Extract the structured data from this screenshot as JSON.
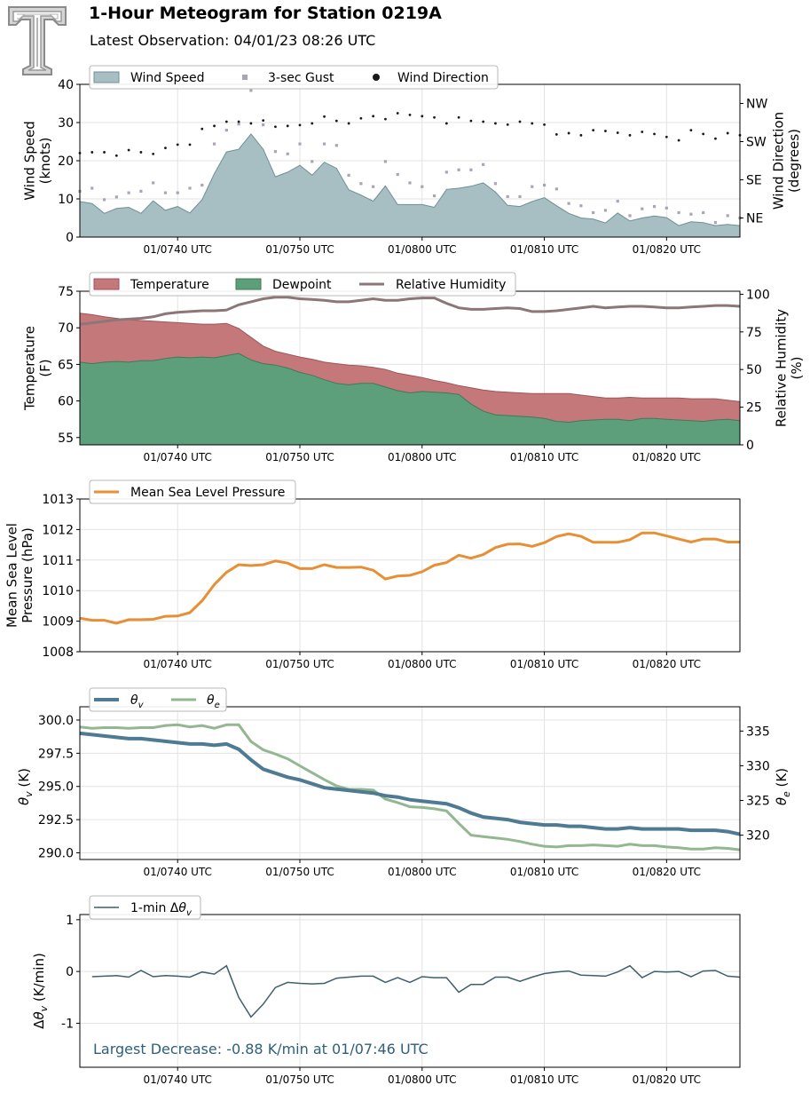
{
  "header": {
    "title": "1-Hour Meteogram for Station 0219A",
    "subtitle": "Latest Observation: 04/01/23 08:26 UTC",
    "logo_icon": "texas-tech-double-t-logo"
  },
  "colors": {
    "wind_fill": "#a7bec3",
    "wind_edge": "#6f8f96",
    "gust": "#a9a4b8",
    "direction": "#1a1a1a",
    "temperature": "#c4787a",
    "dewpoint": "#5e9f7b",
    "rh": "#8c7677",
    "mslp": "#e68f34",
    "theta_v": "#4e7a94",
    "theta_e": "#93b790",
    "dtheta": "#3e5f6c",
    "annotation": "#2f5f7a"
  },
  "x_axis": {
    "ticks": [
      40,
      50,
      60,
      70,
      80
    ],
    "tick_labels": [
      "01/0740 UTC",
      "01/0750 UTC",
      "01/0800 UTC",
      "01/0810 UTC",
      "01/0820 UTC"
    ],
    "xlim": [
      32,
      86
    ]
  },
  "chart_data": [
    {
      "id": "wind",
      "type": "area",
      "ylabel": "Wind Speed\n(knots)",
      "ylim": [
        0,
        40
      ],
      "yticks": [
        0,
        10,
        20,
        30,
        40
      ],
      "ylabel_right": "Wind Direction\n(degrees)",
      "ylim_right": [
        0,
        360
      ],
      "yticks_right": [
        45,
        135,
        225,
        315
      ],
      "ytick_labels_right": [
        "NE",
        "SE",
        "SW",
        "NW"
      ],
      "legend": [
        "Wind Speed",
        "3-sec Gust",
        "Wind Direction"
      ],
      "legend_position": "top-left",
      "grid": true,
      "speed_x": [
        32,
        33,
        34,
        35,
        36,
        37,
        38,
        39,
        40,
        41,
        42,
        43,
        44,
        45,
        46,
        47,
        48,
        49,
        50,
        51,
        52,
        53,
        54,
        55,
        56,
        57,
        58,
        59,
        60,
        61,
        62,
        63,
        64,
        65,
        66,
        67,
        68,
        69,
        70,
        71,
        72,
        73,
        74,
        75,
        76,
        77,
        78,
        79,
        80,
        81,
        82,
        83,
        84,
        85,
        86
      ],
      "speed": [
        9.3,
        8.8,
        6.2,
        7.5,
        7.8,
        6.2,
        9.5,
        7,
        8,
        6.3,
        9.8,
        16.6,
        22.3,
        23,
        27,
        23,
        15.8,
        17,
        18.8,
        16.2,
        19.6,
        18,
        12.4,
        11,
        9.4,
        13.4,
        8.5,
        8.5,
        8.5,
        7.8,
        12.5,
        12.8,
        13.3,
        14.2,
        11.8,
        8.3,
        8,
        9.3,
        10.3,
        8.2,
        6.2,
        5,
        4.7,
        3.7,
        6.3,
        4.2,
        5,
        5.5,
        5.1,
        3,
        4,
        3.8,
        3,
        3.3,
        3
      ],
      "gust_x": [
        32,
        33,
        34,
        35,
        36,
        37,
        38,
        39,
        40,
        41,
        42,
        43,
        44,
        45,
        46,
        47,
        48,
        49,
        50,
        51,
        52,
        53,
        54,
        55,
        56,
        57,
        58,
        59,
        60,
        61,
        62,
        63,
        64,
        65,
        66,
        67,
        68,
        69,
        70,
        71,
        72,
        73,
        74,
        75,
        76,
        77,
        78,
        79,
        80,
        81,
        82,
        83,
        84,
        85,
        86
      ],
      "gust": [
        12,
        12.8,
        9.8,
        10.5,
        11.6,
        12,
        14.2,
        11.6,
        11.6,
        12.8,
        13.6,
        24.4,
        28,
        29.6,
        38.4,
        29.4,
        22.4,
        21.8,
        24.4,
        19.8,
        24.4,
        24,
        16.2,
        14,
        13.2,
        19.8,
        16.4,
        14.2,
        13.2,
        10.8,
        17,
        17.6,
        17.6,
        19,
        14,
        10.6,
        10.6,
        13.2,
        13.6,
        12.6,
        8.8,
        8.2,
        6.4,
        7,
        9.4,
        5.6,
        7.4,
        8,
        7.6,
        6.4,
        6,
        6.4,
        3.8,
        5.6,
        5
      ],
      "direction_x": [
        32,
        33,
        34,
        35,
        36,
        37,
        38,
        39,
        40,
        41,
        42,
        43,
        44,
        45,
        46,
        47,
        48,
        49,
        50,
        51,
        52,
        53,
        54,
        55,
        56,
        57,
        58,
        59,
        60,
        61,
        62,
        63,
        64,
        65,
        66,
        67,
        68,
        69,
        70,
        71,
        72,
        73,
        74,
        75,
        76,
        77,
        78,
        79,
        80,
        81,
        82,
        83,
        84,
        85,
        86
      ],
      "direction": [
        198,
        200,
        200,
        192,
        205,
        200,
        196,
        210,
        218,
        218,
        255,
        262,
        272,
        272,
        268,
        275,
        260,
        262,
        264,
        268,
        284,
        274,
        268,
        280,
        285,
        278,
        292,
        288,
        285,
        282,
        268,
        282,
        274,
        272,
        268,
        265,
        272,
        268,
        265,
        242,
        245,
        240,
        252,
        250,
        246,
        240,
        248,
        243,
        236,
        228,
        252,
        243,
        232,
        245,
        240
      ]
    },
    {
      "id": "thermo",
      "type": "area",
      "ylabel": "Temperature\n(F)",
      "ylim": [
        54,
        75
      ],
      "yticks": [
        55,
        60,
        65,
        70,
        75
      ],
      "ylabel_right": "Relative Humidity\n(%)",
      "ylim_right": [
        0,
        102
      ],
      "yticks_right": [
        0,
        25,
        50,
        75,
        100
      ],
      "legend": [
        "Temperature",
        "Dewpoint",
        "Relative Humidity"
      ],
      "legend_position": "top-left",
      "grid": true,
      "x": [
        32,
        33,
        34,
        35,
        36,
        37,
        38,
        39,
        40,
        41,
        42,
        43,
        44,
        45,
        46,
        47,
        48,
        49,
        50,
        51,
        52,
        53,
        54,
        55,
        56,
        57,
        58,
        59,
        60,
        61,
        62,
        63,
        64,
        65,
        66,
        67,
        68,
        69,
        70,
        71,
        72,
        73,
        74,
        75,
        76,
        77,
        78,
        79,
        80,
        81,
        82,
        83,
        84,
        85,
        86
      ],
      "temperature": [
        72,
        71.8,
        71.5,
        71.3,
        71.1,
        71,
        70.9,
        70.8,
        70.7,
        70.6,
        70.5,
        70.5,
        70.6,
        69.9,
        68.7,
        67.5,
        66.8,
        66.4,
        66,
        65.7,
        65.3,
        65.1,
        64.9,
        64.8,
        64.6,
        64.3,
        63.8,
        63.5,
        63.2,
        62.8,
        62.5,
        62.1,
        61.8,
        61.5,
        61.3,
        61.2,
        61.1,
        61,
        61,
        61,
        61,
        60.8,
        60.6,
        60.4,
        60.4,
        60.5,
        60.4,
        60.4,
        60.4,
        60.4,
        60.3,
        60.3,
        60.3,
        60.1,
        59.9
      ],
      "dewpoint": [
        65.3,
        65.1,
        65.3,
        65.4,
        65.3,
        65.5,
        65.5,
        65.8,
        66,
        65.9,
        66,
        65.9,
        66.2,
        66.5,
        65.6,
        65.1,
        64.9,
        64.5,
        63.9,
        63.5,
        62.9,
        62.4,
        62.2,
        62.4,
        62.4,
        61.9,
        61.4,
        61.1,
        61.3,
        61.2,
        61.1,
        60.9,
        59.6,
        58.6,
        58.1,
        58,
        57.9,
        57.8,
        57.6,
        57.2,
        57.1,
        57.3,
        57.4,
        57.5,
        57.5,
        57.3,
        57.6,
        57.6,
        57.5,
        57.4,
        57.3,
        57.2,
        57.4,
        57.5,
        57.3
      ],
      "relative_humidity": [
        80,
        81,
        82,
        83,
        83.5,
        84,
        85,
        87,
        88,
        88.5,
        89,
        89,
        89.5,
        93,
        95,
        97,
        98,
        98,
        97,
        96.5,
        96,
        95,
        95,
        96,
        97,
        96,
        96,
        97,
        97.5,
        97.5,
        94,
        91,
        90,
        90,
        90.5,
        91,
        90.5,
        88.5,
        88.5,
        89,
        90,
        91,
        92,
        91,
        91.5,
        92,
        92,
        91.5,
        91,
        91,
        91.5,
        92,
        92.5,
        92.5,
        92
      ]
    },
    {
      "id": "mslp",
      "type": "line",
      "ylabel": "Mean Sea Level\nPressure (hPa)",
      "ylim": [
        1008,
        1013
      ],
      "yticks": [
        1008,
        1009,
        1010,
        1011,
        1012,
        1013
      ],
      "legend": [
        "Mean Sea Level Pressure"
      ],
      "legend_position": "top-left",
      "grid": true,
      "x": [
        32,
        33,
        34,
        35,
        36,
        37,
        38,
        39,
        40,
        41,
        42,
        43,
        44,
        45,
        46,
        47,
        48,
        49,
        50,
        51,
        52,
        53,
        54,
        55,
        56,
        57,
        58,
        59,
        60,
        61,
        62,
        63,
        64,
        65,
        66,
        67,
        68,
        69,
        70,
        71,
        72,
        73,
        74,
        75,
        76,
        77,
        78,
        79,
        80,
        81,
        82,
        83,
        84,
        85,
        86
      ],
      "pressure": [
        1009.1,
        1009.03,
        1009.03,
        1008.93,
        1009.05,
        1009.05,
        1009.06,
        1009.16,
        1009.17,
        1009.28,
        1009.67,
        1010.2,
        1010.6,
        1010.85,
        1010.82,
        1010.85,
        1010.97,
        1010.9,
        1010.72,
        1010.72,
        1010.85,
        1010.76,
        1010.76,
        1010.77,
        1010.67,
        1010.38,
        1010.48,
        1010.5,
        1010.62,
        1010.83,
        1010.92,
        1011.16,
        1011.06,
        1011.18,
        1011.41,
        1011.52,
        1011.53,
        1011.45,
        1011.57,
        1011.77,
        1011.86,
        1011.78,
        1011.58,
        1011.58,
        1011.58,
        1011.67,
        1011.89,
        1011.89,
        1011.79,
        1011.69,
        1011.59,
        1011.69,
        1011.69,
        1011.59,
        1011.59
      ]
    },
    {
      "id": "theta",
      "type": "line",
      "ylabel": "θv (K)",
      "ylim": [
        289.5,
        301
      ],
      "yticks": [
        290.0,
        292.5,
        295.0,
        297.5,
        300.0
      ],
      "ylabel_right": "θe (K)",
      "ylim_right": [
        316.5,
        338.5
      ],
      "yticks_right": [
        320,
        325,
        330,
        335
      ],
      "legend": [
        "θv",
        "θe"
      ],
      "legend_position": "top-left",
      "grid": true,
      "x": [
        32,
        33,
        34,
        35,
        36,
        37,
        38,
        39,
        40,
        41,
        42,
        43,
        44,
        45,
        46,
        47,
        48,
        49,
        50,
        51,
        52,
        53,
        54,
        55,
        56,
        57,
        58,
        59,
        60,
        61,
        62,
        63,
        64,
        65,
        66,
        67,
        68,
        69,
        70,
        71,
        72,
        73,
        74,
        75,
        76,
        77,
        78,
        79,
        80,
        81,
        82,
        83,
        84,
        85,
        86
      ],
      "theta_v": [
        299,
        298.9,
        298.8,
        298.7,
        298.6,
        298.6,
        298.5,
        298.4,
        298.3,
        298.2,
        298.2,
        298.1,
        298.2,
        297.8,
        297,
        296.3,
        296,
        295.7,
        295.5,
        295.2,
        294.9,
        294.8,
        294.7,
        294.6,
        294.5,
        294.3,
        294.2,
        294,
        293.9,
        293.8,
        293.7,
        293.4,
        293,
        292.7,
        292.6,
        292.5,
        292.3,
        292.2,
        292.1,
        292.1,
        292,
        292,
        291.9,
        291.8,
        291.8,
        291.9,
        291.8,
        291.8,
        291.8,
        291.8,
        291.7,
        291.7,
        291.7,
        291.6,
        291.4
      ],
      "theta_e": [
        335.6,
        335.4,
        335.5,
        335.5,
        335.4,
        335.5,
        335.5,
        335.8,
        335.9,
        335.6,
        335.8,
        335.4,
        335.9,
        335.9,
        333.5,
        332.3,
        331.7,
        331,
        330,
        329,
        328,
        327.1,
        326.6,
        326.6,
        326.5,
        325.2,
        324.7,
        324.1,
        324,
        323.8,
        323.5,
        321.7,
        320,
        319.8,
        319.6,
        319.4,
        319.1,
        318.7,
        318.4,
        318.3,
        318.5,
        318.5,
        318.6,
        318.5,
        318.4,
        318.7,
        318.5,
        318.5,
        318.3,
        318.2,
        318,
        318,
        318.2,
        318.1,
        317.9
      ]
    },
    {
      "id": "dtheta",
      "type": "line",
      "ylabel": "Δθv (K/min)",
      "ylim": [
        -1.85,
        1.1
      ],
      "yticks": [
        -1,
        0,
        1
      ],
      "legend": [
        "1-min Δθv"
      ],
      "legend_position": "top-left",
      "grid": true,
      "annotation": "Largest Decrease: -0.88 K/min at 01/07:46 UTC",
      "x": [
        33,
        34,
        35,
        36,
        37,
        38,
        39,
        40,
        41,
        42,
        43,
        44,
        45,
        46,
        47,
        48,
        49,
        50,
        51,
        52,
        53,
        54,
        55,
        56,
        57,
        58,
        59,
        60,
        61,
        62,
        63,
        64,
        65,
        66,
        67,
        68,
        69,
        70,
        71,
        72,
        73,
        74,
        75,
        76,
        77,
        78,
        79,
        80,
        81,
        82,
        83,
        84,
        85,
        86
      ],
      "values": [
        -0.1,
        -0.09,
        -0.08,
        -0.11,
        0.02,
        -0.1,
        -0.08,
        -0.09,
        -0.11,
        -0.01,
        -0.05,
        0.11,
        -0.5,
        -0.88,
        -0.63,
        -0.31,
        -0.21,
        -0.23,
        -0.24,
        -0.23,
        -0.13,
        -0.11,
        -0.09,
        -0.09,
        -0.21,
        -0.12,
        -0.21,
        -0.1,
        -0.12,
        -0.12,
        -0.4,
        -0.25,
        -0.25,
        -0.11,
        -0.11,
        -0.19,
        -0.11,
        -0.04,
        -0.01,
        0.01,
        -0.07,
        -0.08,
        -0.09,
        -0.01,
        0.11,
        -0.12,
        0.0,
        -0.01,
        0.0,
        -0.1,
        0.01,
        0.02,
        -0.09,
        -0.11
      ]
    }
  ]
}
